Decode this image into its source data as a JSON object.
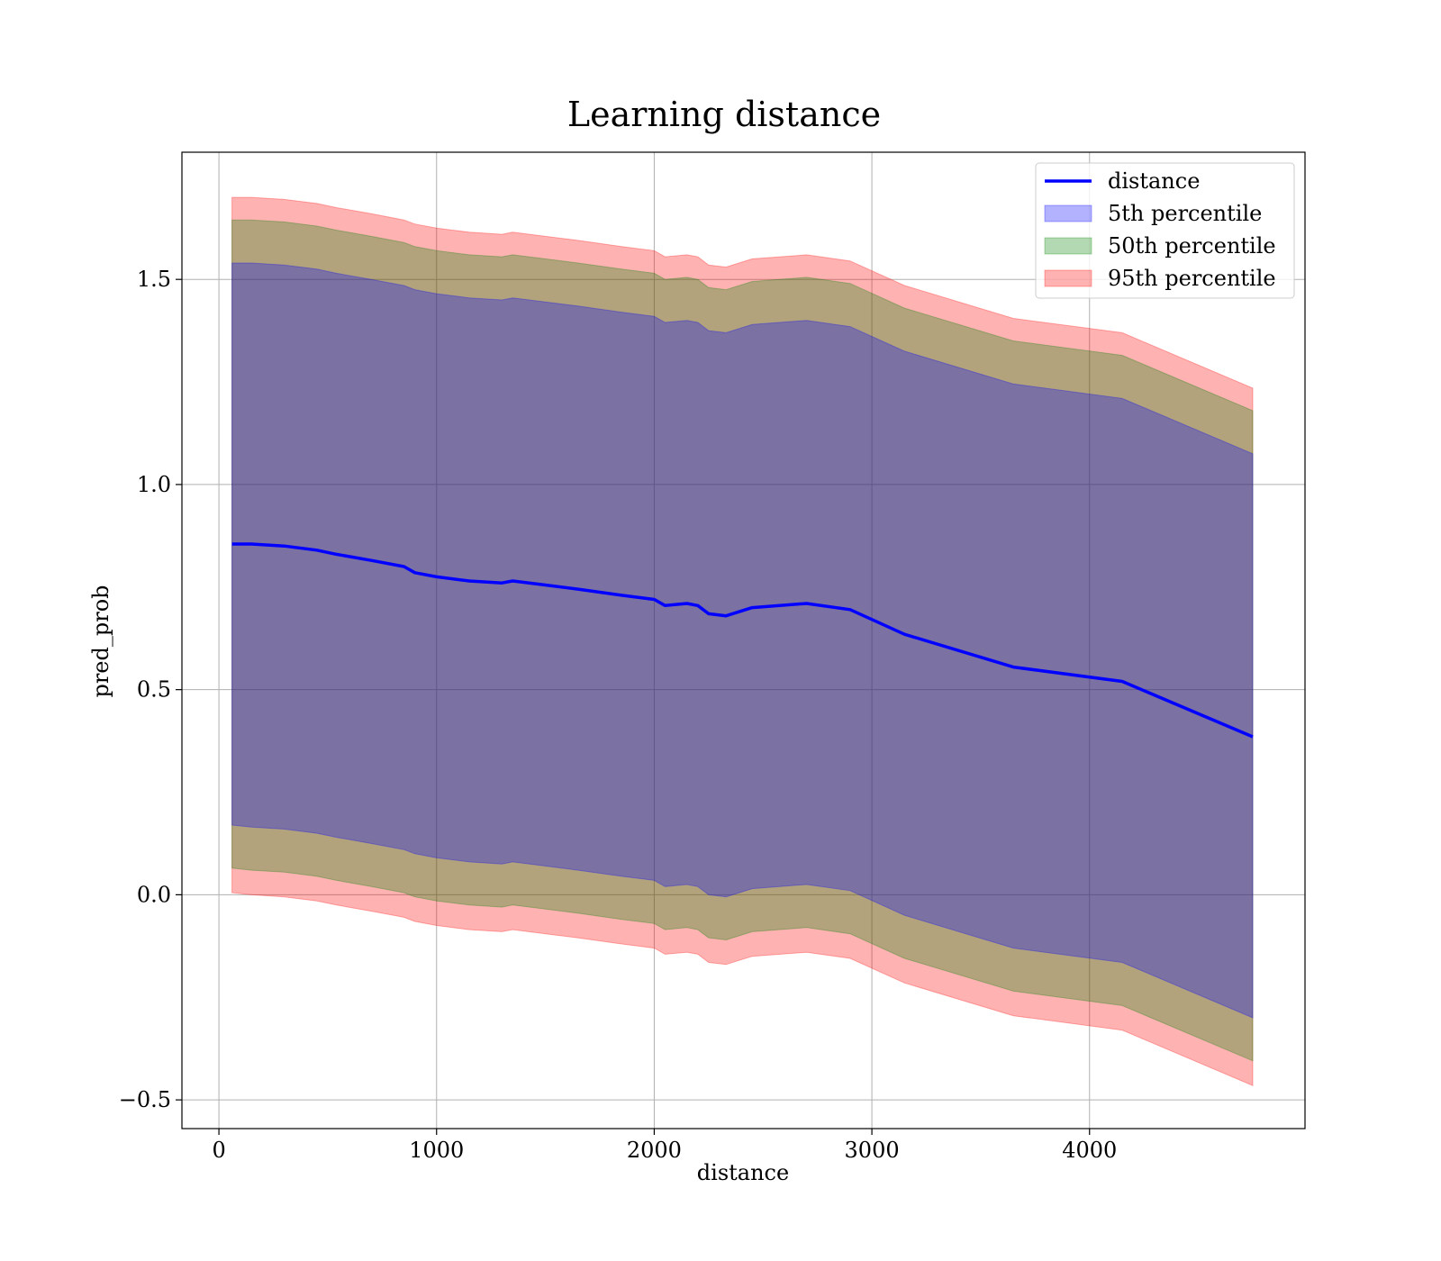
{
  "chart_data": {
    "type": "area",
    "title": "Learning distance",
    "xlabel": "distance",
    "ylabel": "pred_prob",
    "xlim": [
      -170,
      4990
    ],
    "ylim": [
      -0.57,
      1.81
    ],
    "xticks": [
      0,
      1000,
      2000,
      3000,
      4000
    ],
    "yticks": [
      -0.5,
      0.0,
      0.5,
      1.0,
      1.5
    ],
    "xtick_labels": [
      "0",
      "1000",
      "2000",
      "3000",
      "4000"
    ],
    "ytick_labels": [
      "−0.5",
      "0.0",
      "0.5",
      "1.0",
      "1.5"
    ],
    "grid": true,
    "legend_position": "top-right",
    "x": [
      60,
      150,
      300,
      450,
      540,
      700,
      850,
      900,
      1000,
      1150,
      1300,
      1350,
      1500,
      1650,
      1850,
      2000,
      2050,
      2150,
      2200,
      2250,
      2330,
      2450,
      2700,
      2900,
      3150,
      3650,
      4150,
      4750
    ],
    "line": {
      "name": "distance",
      "color": "#0000ff",
      "values": [
        0.855,
        0.855,
        0.85,
        0.84,
        0.83,
        0.815,
        0.8,
        0.785,
        0.775,
        0.765,
        0.76,
        0.765,
        0.755,
        0.745,
        0.73,
        0.72,
        0.705,
        0.71,
        0.705,
        0.685,
        0.68,
        0.7,
        0.71,
        0.695,
        0.635,
        0.555,
        0.52,
        0.385
      ]
    },
    "bands": [
      {
        "name": "95th percentile",
        "color": "#ff0000",
        "opacity": 0.3,
        "lower": [
          0.005,
          0.0,
          -0.005,
          -0.015,
          -0.025,
          -0.04,
          -0.055,
          -0.065,
          -0.075,
          -0.085,
          -0.09,
          -0.085,
          -0.095,
          -0.105,
          -0.12,
          -0.13,
          -0.145,
          -0.14,
          -0.145,
          -0.165,
          -0.17,
          -0.15,
          -0.14,
          -0.155,
          -0.215,
          -0.295,
          -0.33,
          -0.465
        ],
        "upper": [
          1.7,
          1.7,
          1.695,
          1.685,
          1.675,
          1.66,
          1.645,
          1.635,
          1.625,
          1.615,
          1.61,
          1.615,
          1.605,
          1.595,
          1.58,
          1.57,
          1.555,
          1.56,
          1.555,
          1.535,
          1.53,
          1.55,
          1.56,
          1.545,
          1.485,
          1.405,
          1.37,
          1.235
        ]
      },
      {
        "name": "50th percentile",
        "color": "#008000",
        "opacity": 0.3,
        "lower": [
          0.065,
          0.06,
          0.055,
          0.045,
          0.035,
          0.02,
          0.005,
          -0.005,
          -0.015,
          -0.025,
          -0.03,
          -0.025,
          -0.035,
          -0.045,
          -0.06,
          -0.07,
          -0.085,
          -0.08,
          -0.085,
          -0.105,
          -0.11,
          -0.09,
          -0.08,
          -0.095,
          -0.155,
          -0.235,
          -0.27,
          -0.405
        ],
        "upper": [
          1.645,
          1.645,
          1.64,
          1.63,
          1.62,
          1.605,
          1.59,
          1.58,
          1.57,
          1.56,
          1.555,
          1.56,
          1.55,
          1.54,
          1.525,
          1.515,
          1.5,
          1.505,
          1.5,
          1.48,
          1.475,
          1.495,
          1.505,
          1.49,
          1.43,
          1.35,
          1.315,
          1.18
        ]
      },
      {
        "name": "5th percentile",
        "color": "#0000ff",
        "opacity": 0.3,
        "lower": [
          0.17,
          0.165,
          0.16,
          0.15,
          0.14,
          0.125,
          0.11,
          0.1,
          0.09,
          0.08,
          0.075,
          0.08,
          0.07,
          0.06,
          0.045,
          0.035,
          0.02,
          0.025,
          0.02,
          0.0,
          -0.005,
          0.015,
          0.025,
          0.01,
          -0.05,
          -0.13,
          -0.165,
          -0.3
        ],
        "upper": [
          1.54,
          1.54,
          1.535,
          1.525,
          1.515,
          1.5,
          1.485,
          1.475,
          1.465,
          1.455,
          1.45,
          1.455,
          1.445,
          1.435,
          1.42,
          1.41,
          1.395,
          1.4,
          1.395,
          1.375,
          1.37,
          1.39,
          1.4,
          1.385,
          1.325,
          1.245,
          1.21,
          1.075
        ]
      }
    ],
    "legend": [
      "distance",
      "5th percentile",
      "50th percentile",
      "95th percentile"
    ]
  }
}
